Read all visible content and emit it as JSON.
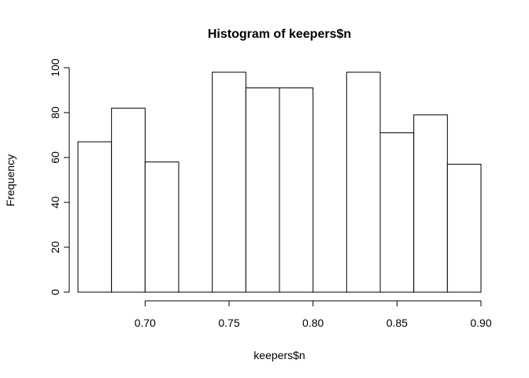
{
  "chart_data": {
    "type": "bar",
    "title": "Histogram of keepers$n",
    "xlabel": "keepers$n",
    "ylabel": "Frequency",
    "bins": [
      {
        "start": 0.66,
        "end": 0.68,
        "count": 67
      },
      {
        "start": 0.68,
        "end": 0.7,
        "count": 82
      },
      {
        "start": 0.7,
        "end": 0.72,
        "count": 58
      },
      {
        "start": 0.72,
        "end": 0.74,
        "count": 0
      },
      {
        "start": 0.74,
        "end": 0.76,
        "count": 98
      },
      {
        "start": 0.76,
        "end": 0.78,
        "count": 91
      },
      {
        "start": 0.78,
        "end": 0.8,
        "count": 91
      },
      {
        "start": 0.8,
        "end": 0.82,
        "count": 0
      },
      {
        "start": 0.82,
        "end": 0.84,
        "count": 98
      },
      {
        "start": 0.84,
        "end": 0.86,
        "count": 71
      },
      {
        "start": 0.86,
        "end": 0.88,
        "count": 79
      },
      {
        "start": 0.88,
        "end": 0.9,
        "count": 57
      }
    ],
    "xlim": [
      0.66,
      0.9
    ],
    "ylim": [
      0,
      100
    ],
    "x_ticks": [
      0.7,
      0.75,
      0.8,
      0.85,
      0.9
    ],
    "x_tick_labels": [
      "0.70",
      "0.75",
      "0.80",
      "0.85",
      "0.90"
    ],
    "y_ticks": [
      0,
      20,
      40,
      60,
      80,
      100
    ],
    "y_tick_labels": [
      "0",
      "20",
      "40",
      "60",
      "80",
      "100"
    ],
    "grid": false,
    "legend": "none"
  }
}
